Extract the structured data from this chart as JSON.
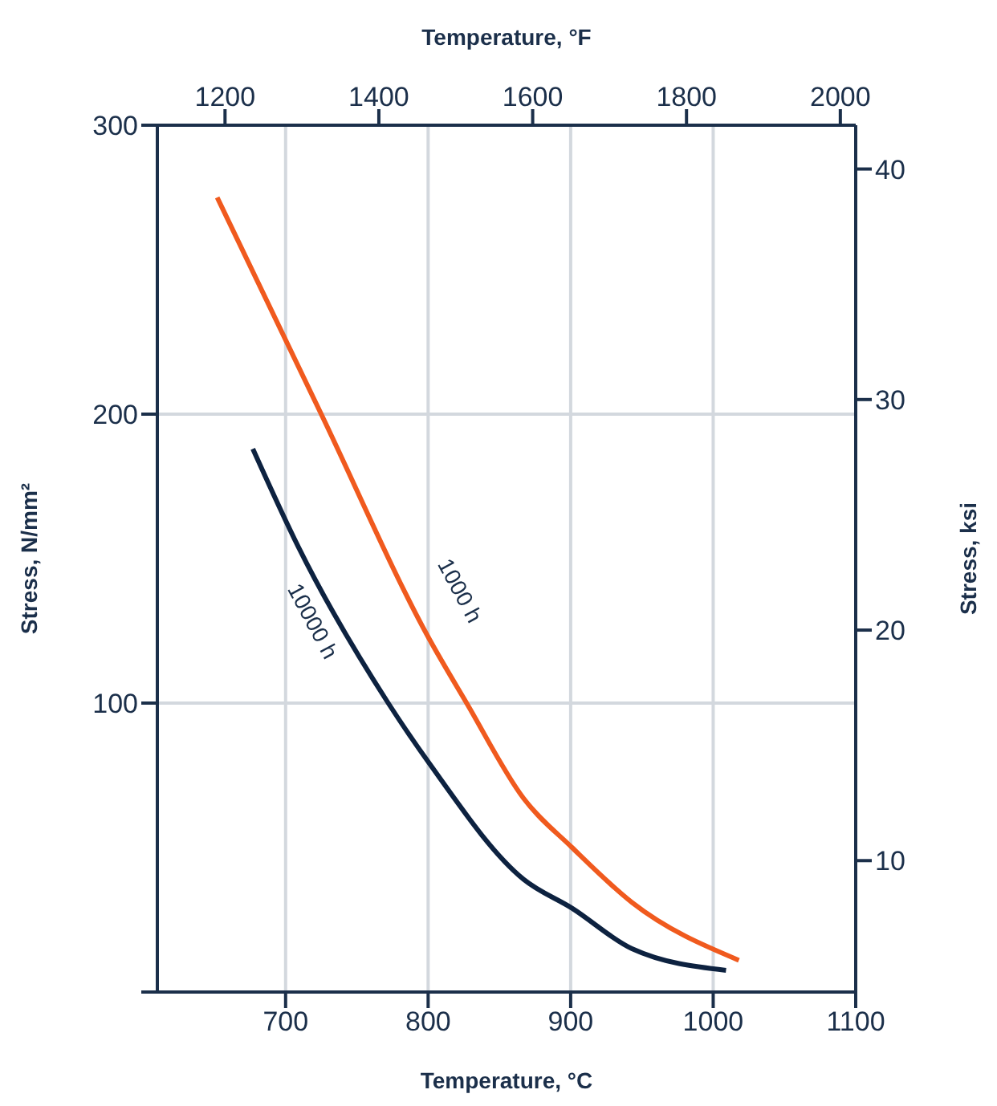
{
  "chart_data": {
    "type": "line",
    "xlabel": "Temperature, °C",
    "ylabel": "Stress, N/mm²",
    "y2label": "Stress, ksi",
    "x2label": "Temperature, °F",
    "xlim": [
      610,
      1100
    ],
    "xticks": [
      700,
      800,
      900,
      1000,
      1100
    ],
    "ylim": [
      0,
      300
    ],
    "yticks": [
      {
        "value": 0,
        "label": null
      },
      100,
      200,
      300
    ],
    "x2lim": [
      1112,
      2020
    ],
    "x2ticks": [
      1200,
      1400,
      1600,
      1800,
      2000
    ],
    "y2lim": [
      4.3,
      41.9
    ],
    "y2ticks": [
      10,
      20,
      30,
      40
    ],
    "grid": true,
    "marker": "none",
    "line_style": "solid",
    "series": [
      {
        "color": "#f05a1e",
        "x": [
          652,
          725,
          801,
          827,
          867,
          901,
          943,
          1018
        ],
        "values": [
          275,
          200,
          122,
          100,
          67,
          50,
          31,
          11
        ]
      },
      {
        "color": "#0d2240",
        "x": [
          677,
          709,
          772,
          801,
          867,
          901,
          943,
          1009
        ],
        "values": [
          188,
          154,
          100,
          79,
          39,
          29,
          15,
          7.5
        ]
      }
    ],
    "annotations": [
      "1000 h",
      "10000 h"
    ]
  }
}
